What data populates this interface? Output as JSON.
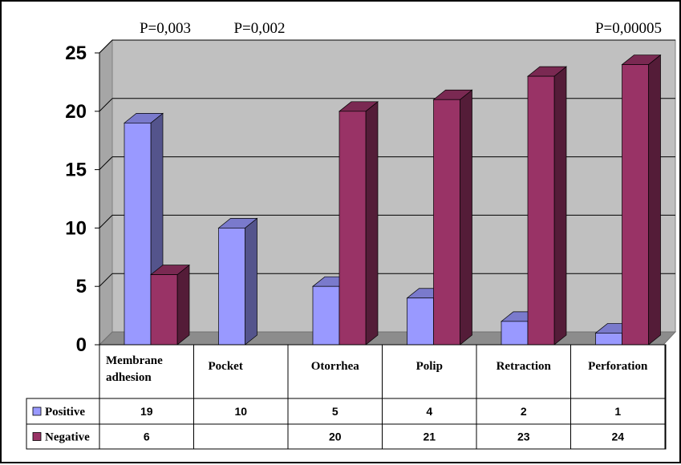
{
  "chart_data": {
    "type": "bar",
    "categories": [
      [
        "Membrane",
        "adhesion"
      ],
      [
        "Pocket"
      ],
      [
        "Otorrhea"
      ],
      [
        "Polip"
      ],
      [
        "Retraction"
      ],
      [
        "Perforation"
      ]
    ],
    "series": [
      {
        "name": "Positive",
        "values": [
          19,
          10,
          5,
          4,
          2,
          1
        ],
        "color": "#9999ff"
      },
      {
        "name": "Negative",
        "values": [
          6,
          null,
          20,
          21,
          23,
          24
        ],
        "color": "#993366"
      }
    ],
    "table_values": {
      "Positive": [
        "19",
        "10",
        "5",
        "4",
        "2",
        "1"
      ],
      "Negative": [
        "6",
        "",
        "20",
        "21",
        "23",
        "24"
      ]
    },
    "annotations": [
      "P=0,003",
      "P=0,002",
      "",
      "",
      "",
      "P=0,00005"
    ],
    "yticks": [
      "0",
      "5",
      "10",
      "15",
      "20",
      "25"
    ],
    "ylim": [
      0,
      25
    ],
    "grid": true,
    "legend": "data table"
  }
}
